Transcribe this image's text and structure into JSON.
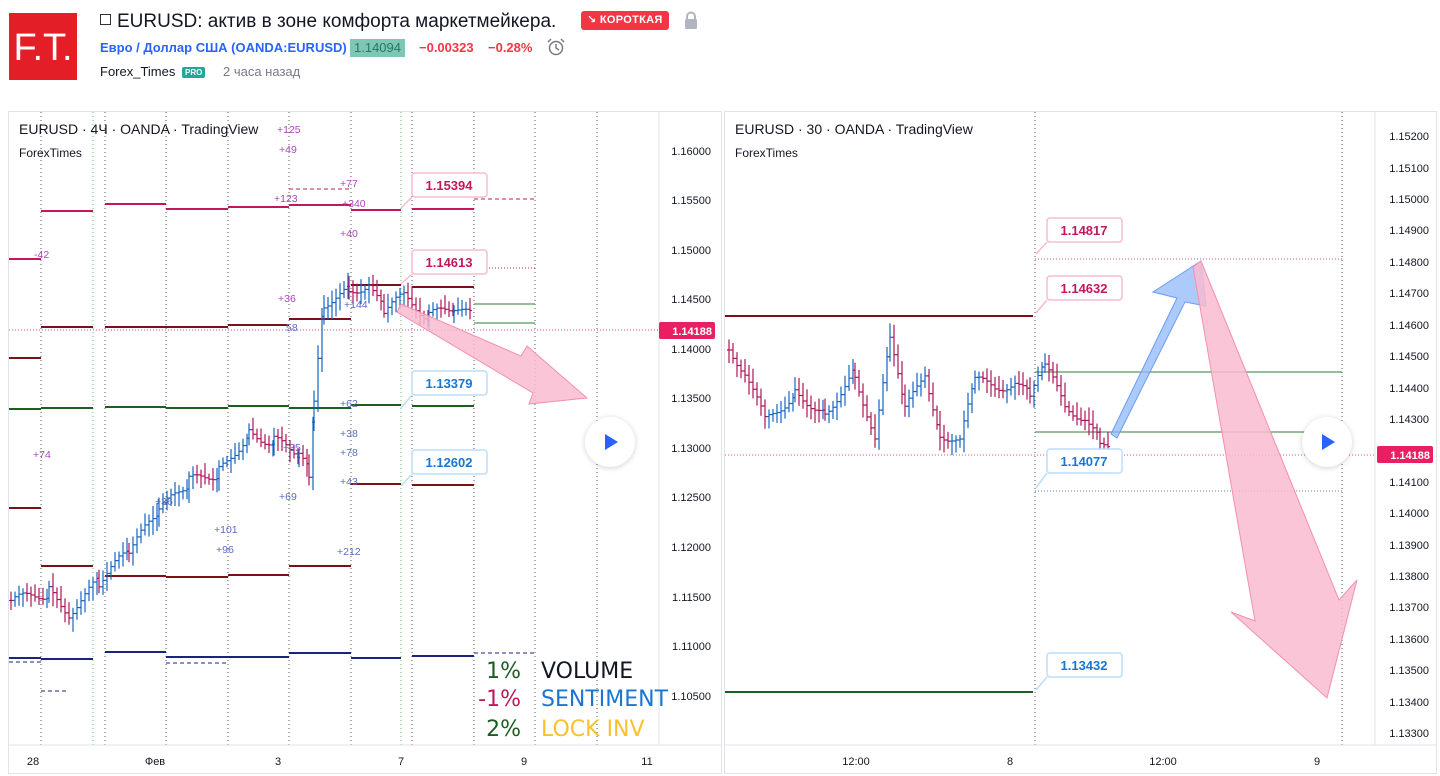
{
  "header": {
    "logo_text": "F.T.",
    "title": "EURUSD: актив в зоне комфорта маркетмейкера.",
    "badge": "↘ КОРОТКАЯ",
    "symbol": "Евро / Доллар США (OANDA:EURUSD)",
    "price": "1.14094",
    "change": "−0.00323",
    "change_pct": "−0.28%",
    "author": "Forex_Times",
    "author_badge": "PRO",
    "time": "2 часа назад"
  },
  "left_chart": {
    "title": "EURUSD · 4Ч · OANDA · TradingView",
    "subtitle": "ForexTimes",
    "price_axis": [
      "1.16000",
      "1.15500",
      "1.15000",
      "1.14500",
      "1.14000",
      "1.13500",
      "1.13000",
      "1.12500",
      "1.12000",
      "1.11500",
      "1.11000",
      "1.10500"
    ],
    "current_price": "1.14188",
    "time_axis": [
      "28",
      "Фев",
      "3",
      "7",
      "9",
      "11"
    ],
    "callouts": [
      "1.15394",
      "1.14613",
      "1.13379",
      "1.12602"
    ],
    "annotations": [
      "+125",
      "+49",
      "+77",
      "+123",
      "+340",
      "+40",
      "-42",
      "+36",
      "+144",
      "58",
      "+62",
      "+38",
      "+78",
      "+43",
      "+74",
      "+35",
      "+36",
      "+101",
      "+96",
      "+69",
      "+212"
    ],
    "legend": [
      {
        "value": "1%",
        "label": "VOLUME"
      },
      {
        "value": "-1%",
        "label": "SENTIMENT"
      },
      {
        "value": "2%",
        "label": "LOCK INV"
      }
    ]
  },
  "right_chart": {
    "title": "EURUSD · 30 · OANDA · TradingView",
    "subtitle": "ForexTimes",
    "price_axis": [
      "1.15200",
      "1.15100",
      "1.15000",
      "1.14900",
      "1.14800",
      "1.14700",
      "1.14600",
      "1.14500",
      "1.14400",
      "1.14300",
      "1.14100",
      "1.14000",
      "1.13900",
      "1.13800",
      "1.13700",
      "1.13600",
      "1.13500",
      "1.13400",
      "1.13300"
    ],
    "current_price": "1.14188",
    "time_axis": [
      "12:00",
      "8",
      "12:00",
      "9"
    ],
    "callouts": [
      "1.14817",
      "1.14632",
      "1.14077",
      "1.13432"
    ]
  }
}
